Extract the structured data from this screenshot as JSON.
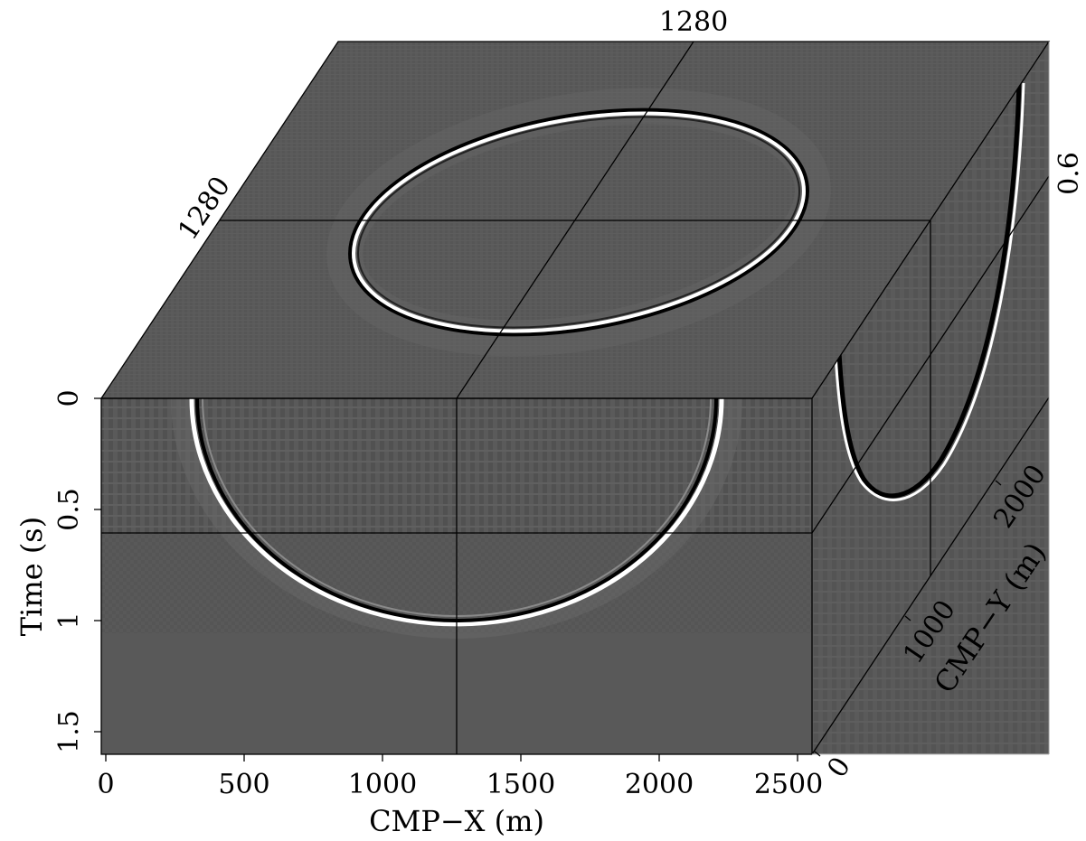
{
  "figure": {
    "front_top_tick": "1280",
    "top_left_tick": "1280",
    "right_tick": "0.6",
    "time_axis": {
      "label": "Time (s)",
      "ticks": [
        "0",
        "0.5",
        "1",
        "1.5"
      ],
      "tick_values": [
        0,
        0.5,
        1,
        1.5
      ],
      "range": [
        0,
        1.6
      ]
    },
    "cmpx_axis": {
      "label": "CMP−X (m)",
      "ticks": [
        "0",
        "500",
        "1000",
        "1500",
        "2000",
        "2500"
      ],
      "tick_values": [
        0,
        500,
        1000,
        1500,
        2000,
        2500
      ],
      "range": [
        0,
        2560
      ]
    },
    "cmpy_axis": {
      "label": "CMP−Y (m)",
      "ticks": [
        "0",
        "1000",
        "2000"
      ],
      "tick_values": [
        0,
        1000,
        2000
      ],
      "range": [
        0,
        2560
      ]
    },
    "slice_positions": {
      "cmp_x": 1280,
      "cmp_y": 1280,
      "time": 0.6
    },
    "colors": {
      "panel": "#595959",
      "event_light": "#ffffff",
      "event_dark": "#000000",
      "frame": "#000000"
    }
  }
}
